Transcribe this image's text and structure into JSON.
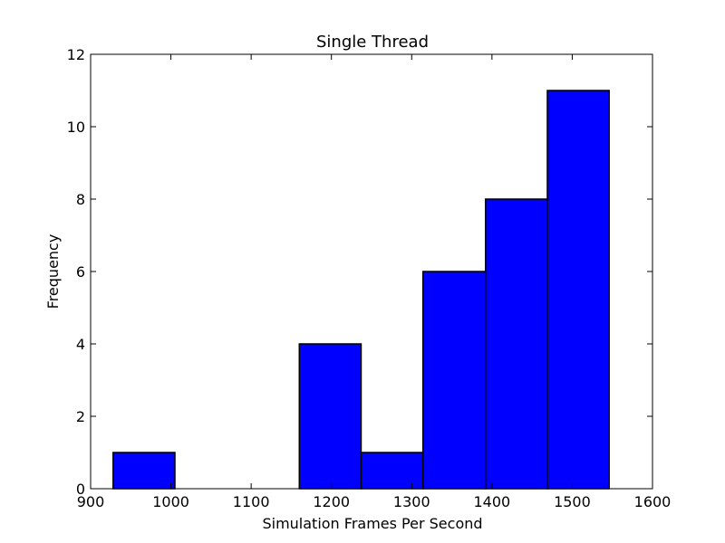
{
  "chart_data": {
    "type": "bar",
    "title": "Single Thread",
    "xlabel": "Simulation Frames Per Second",
    "ylabel": "Frequency",
    "xlim": [
      900,
      1600
    ],
    "ylim": [
      0,
      12
    ],
    "xticks": [
      900,
      1000,
      1100,
      1200,
      1300,
      1400,
      1500,
      1600
    ],
    "yticks": [
      0,
      2,
      4,
      6,
      8,
      10,
      12
    ],
    "grid": false,
    "bar_color": "#0000ff",
    "bins": [
      {
        "x0": 928,
        "x1": 1005,
        "count": 1
      },
      {
        "x0": 1005,
        "x1": 1082,
        "count": 0
      },
      {
        "x0": 1082,
        "x1": 1160,
        "count": 0
      },
      {
        "x0": 1160,
        "x1": 1237,
        "count": 4
      },
      {
        "x0": 1237,
        "x1": 1314,
        "count": 1
      },
      {
        "x0": 1314,
        "x1": 1392,
        "count": 6
      },
      {
        "x0": 1392,
        "x1": 1469,
        "count": 8
      },
      {
        "x0": 1469,
        "x1": 1546,
        "count": 11
      }
    ]
  }
}
